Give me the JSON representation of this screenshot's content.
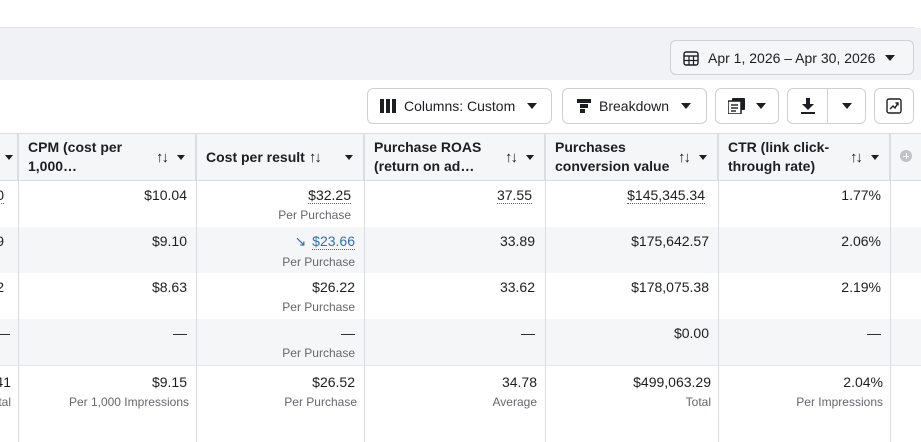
{
  "date_range": {
    "label": "Apr 1, 2026 – Apr 30, 2026",
    "icon": "calendar-icon"
  },
  "toolbar": {
    "columns_label": "Columns: Custom",
    "breakdown_label": "Breakdown",
    "reports_icon": "reports-icon",
    "export_icon": "download-icon",
    "chart_icon": "trend-chart-icon"
  },
  "columns": {
    "cpm": {
      "line1": "CPM (cost per",
      "line2": "1,000…"
    },
    "cost_per_result": {
      "line1": "Cost per result",
      "line2": ""
    },
    "purchase_roas": {
      "line1": "Purchase ROAS",
      "line2": "(return on ad…"
    },
    "purchases_value": {
      "line1": "Purchases",
      "line2": "conversion value"
    },
    "ctr": {
      "line1": "CTR (link click-",
      "line2": "through rate)"
    },
    "sort_glyph": "↑↓"
  },
  "rows": [
    {
      "prev": "0",
      "cpm": "$10.04",
      "cost": "$32.25",
      "cost_sub": "Per Purchase",
      "roas": "37.55",
      "value": "$145,345.34",
      "ctr": "1.77%"
    },
    {
      "prev": "9",
      "cpm": "$9.10",
      "cost": "$23.66",
      "cost_sub": "Per Purchase",
      "roas": "33.89",
      "value": "$175,642.57",
      "ctr": "2.06%"
    },
    {
      "prev": "2",
      "cpm": "$8.63",
      "cost": "$26.22",
      "cost_sub": "Per Purchase",
      "roas": "33.62",
      "value": "$178,075.38",
      "ctr": "2.19%"
    },
    {
      "prev": "—",
      "cpm": "—",
      "cost": "—",
      "cost_sub": "Per Purchase",
      "roas": "—",
      "value": "$0.00",
      "ctr": "—"
    }
  ],
  "totals": {
    "prev": "41",
    "prev_sub": "tal",
    "cpm": "$9.15",
    "cpm_sub": "Per 1,000 Impressions",
    "cost": "$26.52",
    "cost_sub": "Per Purchase",
    "roas": "34.78",
    "roas_sub": "Average",
    "value": "$499,063.29",
    "value_sub": "Total",
    "ctr": "2.04%",
    "ctr_sub": "Per Impressions"
  },
  "trend_glyph": "↘"
}
